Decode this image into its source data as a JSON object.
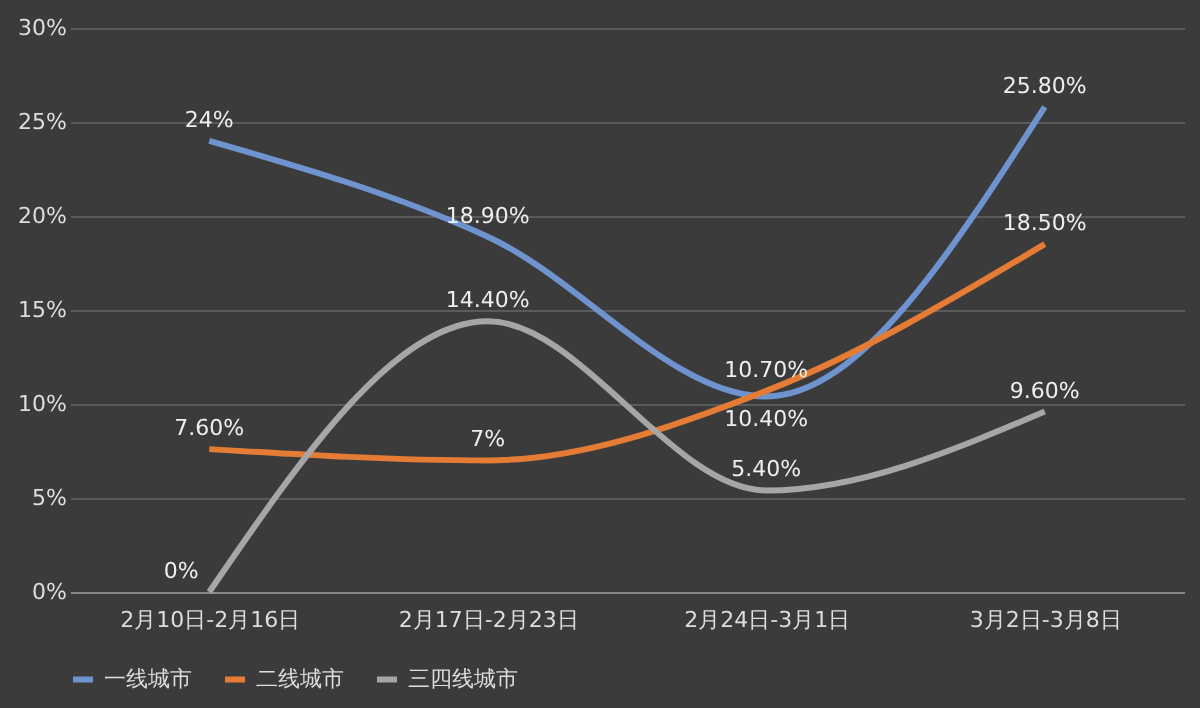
{
  "chart_data": {
    "type": "line",
    "categories": [
      "2月10日-2月16日",
      "2月17日-2月23日",
      "2月24日-3月1日",
      "3月2日-3月8日"
    ],
    "series": [
      {
        "name": "一线城市",
        "color": "#6f93cf",
        "values": [
          24,
          18.9,
          10.4,
          25.8
        ],
        "value_labels": [
          "24%",
          "18.90%",
          "10.40%",
          "25.80%"
        ]
      },
      {
        "name": "二线城市",
        "color": "#e57c36",
        "values": [
          7.6,
          7,
          10.7,
          18.5
        ],
        "value_labels": [
          "7.60%",
          "7%",
          "10.70%",
          "18.50%"
        ]
      },
      {
        "name": "三四线城市",
        "color": "#a6a6a6",
        "values": [
          0,
          14.4,
          5.4,
          9.6
        ],
        "value_labels": [
          "0%",
          "14.40%",
          "5.40%",
          "9.60%"
        ]
      }
    ],
    "ylim": [
      0,
      30
    ],
    "yticks": [
      {
        "value": 0,
        "label": "0%"
      },
      {
        "value": 5,
        "label": "5%"
      },
      {
        "value": 10,
        "label": "10%"
      },
      {
        "value": 15,
        "label": "15%"
      },
      {
        "value": 20,
        "label": "20%"
      },
      {
        "value": 25,
        "label": "25%"
      },
      {
        "value": 30,
        "label": "30%"
      }
    ],
    "grid": "y",
    "legend": "bottom",
    "marker": "none",
    "line_style": "solid"
  }
}
